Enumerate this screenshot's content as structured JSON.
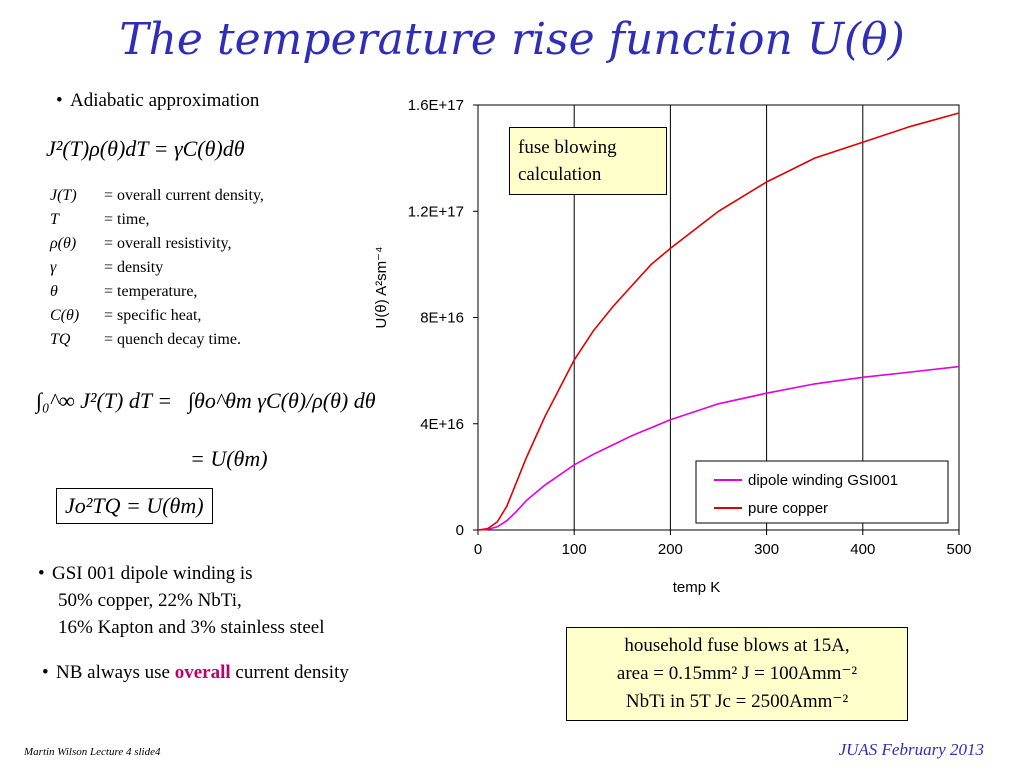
{
  "slide": {
    "title": "The temperature rise function U(θ)",
    "footer_left": "Martin Wilson Lecture 4 slide4",
    "footer_right": "JUAS February 2013"
  },
  "left": {
    "bullet1": "Adiabatic approximation",
    "eq1": "J²(T)ρ(θ)dT = γC(θ)dθ",
    "definitions": [
      {
        "sym": "J(T)",
        "desc": "= overall current density,"
      },
      {
        "sym": "T",
        "desc": "= time,"
      },
      {
        "sym": "ρ(θ)",
        "desc": "= overall resistivity,"
      },
      {
        "sym": "γ",
        "desc": "= density"
      },
      {
        "sym": "θ",
        "desc": "= temperature,"
      },
      {
        "sym": "C(θ)",
        "desc": "= specific heat,"
      },
      {
        "sym": "TQ",
        "desc": "= quench decay time."
      }
    ],
    "eq2_lhs": "∫₀^∞ J²(T) dT =",
    "eq2_rhs": "∫θo^θm γC(θ)/ρ(θ) dθ",
    "eq2_line2": "= U(θm)",
    "eq3": "Jo²TQ = U(θm)",
    "bullet2_lines": [
      "GSI 001 dipole winding is",
      "50% copper, 22% NbTi,",
      "16% Kapton and 3% stainless steel"
    ],
    "bullet3_prefix": "NB always use ",
    "bullet3_highlight": "overall",
    "bullet3_suffix": " current density"
  },
  "callouts": {
    "fuse": [
      "fuse blowing",
      "calculation"
    ],
    "household": [
      "household fuse blows at 15A,",
      "area = 0.15mm² J = 100Amm⁻²",
      "NbTi in 5T Jc = 2500Amm⁻²"
    ]
  },
  "chart_data": {
    "type": "line",
    "xlabel": "temp K",
    "ylabel": "U(θ)  A²sm⁻⁴",
    "xlim": [
      0,
      500
    ],
    "ylim": [
      0,
      1.6e+17
    ],
    "x_ticks": [
      "0",
      "100",
      "200",
      "300",
      "400",
      "500"
    ],
    "y_ticks": [
      "0",
      "4E+16",
      "8E+16",
      "1.2E+17",
      "1.6E+17"
    ],
    "grid": "vertical",
    "legend": "bottom-right",
    "series": [
      {
        "name": "dipole winding GSI001",
        "color": "#e000e0",
        "x": [
          0,
          10,
          20,
          30,
          40,
          50,
          60,
          70,
          80,
          100,
          120,
          140,
          160,
          180,
          200,
          250,
          300,
          350,
          400,
          450,
          500
        ],
        "y": [
          0,
          200000000000000.0,
          1200000000000000.0,
          3500000000000000.0,
          7000000000000000.0,
          1.1e+16,
          1.4e+16,
          1.7e+16,
          1.95e+16,
          2.45e+16,
          2.85e+16,
          3.2e+16,
          3.55e+16,
          3.85e+16,
          4.15e+16,
          4.75e+16,
          5.15e+16,
          5.5e+16,
          5.75e+16,
          5.95e+16,
          6.15e+16
        ]
      },
      {
        "name": "pure copper",
        "color": "#e00000",
        "x": [
          0,
          10,
          20,
          30,
          40,
          50,
          60,
          70,
          80,
          100,
          120,
          140,
          160,
          180,
          200,
          250,
          300,
          350,
          400,
          450,
          500
        ],
        "y": [
          0,
          500000000000000.0,
          3000000000000000.0,
          9000000000000000.0,
          1.8e+16,
          2.7e+16,
          3.5e+16,
          4.3e+16,
          5e+16,
          6.4e+16,
          7.5e+16,
          8.4e+16,
          9.2e+16,
          1e+17,
          1.06e+17,
          1.2e+17,
          1.31e+17,
          1.4e+17,
          1.46e+17,
          1.52e+17,
          1.57e+17
        ]
      }
    ]
  }
}
